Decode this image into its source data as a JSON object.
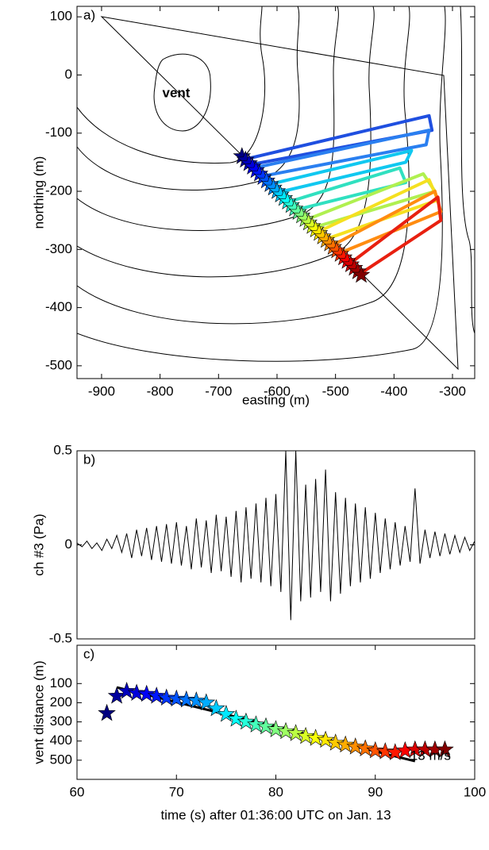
{
  "chart_data": [
    {
      "type": "scatter",
      "panel_label": "a)",
      "xlabel": "easting (m)",
      "ylabel": "northing (m)",
      "vent_label": "vent",
      "xlim": [
        -942,
        -262
      ],
      "ylim": [
        -522,
        118
      ],
      "xticks": [
        -900,
        -800,
        -700,
        -600,
        -500,
        -400,
        -300
      ],
      "yticks": [
        -500,
        -400,
        -300,
        -200,
        -100,
        0,
        100
      ],
      "colormap": "jet",
      "series": [
        {
          "marker": "star",
          "x": [
            -660,
            -654,
            -648,
            -642,
            -636,
            -630,
            -624,
            -618,
            -612,
            -606,
            -600,
            -594,
            -588,
            -582,
            -576,
            -570,
            -564,
            -558,
            -552,
            -546,
            -540,
            -534,
            -528,
            -522,
            -516,
            -510,
            -504,
            -498,
            -492,
            -486,
            -480,
            -474,
            -468,
            -462,
            -456
          ],
          "values": [
            -140,
            -146,
            -152,
            -158,
            -164,
            -170,
            -176,
            -182,
            -188,
            -194,
            -200,
            -206,
            -212,
            -218,
            -224,
            -230,
            -236,
            -242,
            -248,
            -254,
            -260,
            -266,
            -272,
            -278,
            -284,
            -290,
            -296,
            -302,
            -308,
            -314,
            -320,
            -326,
            -332,
            -338,
            -344
          ]
        }
      ],
      "loops": [
        {
          "color": "#1f4fe0",
          "x": [
            -655,
            -340,
            -335,
            -650
          ],
          "values": [
            -145,
            -70,
            -95,
            -155
          ]
        },
        {
          "color": "#2a7ff0",
          "x": [
            -640,
            -340,
            -345,
            -630
          ],
          "values": [
            -160,
            -95,
            -120,
            -175
          ]
        },
        {
          "color": "#10c8f0",
          "x": [
            -600,
            -370,
            -380,
            -590
          ],
          "values": [
            -185,
            -130,
            -150,
            -200
          ]
        },
        {
          "color": "#30e0c0",
          "x": [
            -570,
            -390,
            -380,
            -560
          ],
          "values": [
            -215,
            -160,
            -185,
            -230
          ]
        },
        {
          "color": "#b0f050",
          "x": [
            -540,
            -350,
            -330,
            -530
          ],
          "values": [
            -245,
            -170,
            -200,
            -260
          ]
        },
        {
          "color": "#f5e020",
          "x": [
            -520,
            -340,
            -325,
            -510
          ],
          "values": [
            -265,
            -180,
            -215,
            -280
          ]
        },
        {
          "color": "#ff8c10",
          "x": [
            -500,
            -330,
            -320,
            -490
          ],
          "values": [
            -290,
            -200,
            -235,
            -305
          ]
        },
        {
          "color": "#e82010",
          "x": [
            -470,
            -325,
            -320,
            -455
          ],
          "values": [
            -320,
            -210,
            -250,
            -340
          ]
        }
      ]
    },
    {
      "type": "line",
      "panel_label": "b)",
      "ylabel": "ch #3 (Pa)",
      "color": "#000000",
      "xlim": [
        60,
        100
      ],
      "ylim": [
        -0.5,
        0.5
      ],
      "yticks": [
        -0.5,
        0,
        0.5
      ],
      "x": [
        60,
        60.5,
        61,
        61.5,
        62,
        62.5,
        63,
        63.5,
        64,
        64.5,
        65,
        65.5,
        66,
        66.5,
        67,
        67.5,
        68,
        68.5,
        69,
        69.5,
        70,
        70.5,
        71,
        71.5,
        72,
        72.5,
        73,
        73.5,
        74,
        74.5,
        75,
        75.5,
        76,
        76.5,
        77,
        77.5,
        78,
        78.5,
        79,
        79.5,
        80,
        80.5,
        81,
        81.5,
        82,
        82.5,
        83,
        83.5,
        84,
        84.5,
        85,
        85.5,
        86,
        86.5,
        87,
        87.5,
        88,
        88.5,
        89,
        89.5,
        90,
        90.5,
        91,
        91.5,
        92,
        92.5,
        93,
        93.5,
        94,
        94.5,
        95,
        95.5,
        96,
        96.5,
        97,
        97.5,
        98,
        98.5,
        99,
        99.5,
        100
      ],
      "values": [
        0.01,
        -0.01,
        0.02,
        -0.02,
        0.01,
        -0.03,
        0.03,
        -0.02,
        0.05,
        -0.04,
        0.06,
        -0.07,
        0.08,
        -0.06,
        0.09,
        -0.08,
        0.1,
        -0.09,
        0.11,
        -0.1,
        0.12,
        -0.11,
        0.1,
        -0.13,
        0.14,
        -0.12,
        0.13,
        -0.15,
        0.16,
        -0.14,
        0.15,
        -0.17,
        0.18,
        -0.2,
        0.2,
        -0.18,
        0.22,
        -0.2,
        0.25,
        -0.22,
        0.27,
        -0.25,
        0.5,
        -0.4,
        0.5,
        -0.3,
        0.32,
        -0.28,
        0.35,
        -0.25,
        0.4,
        -0.3,
        0.28,
        -0.26,
        0.25,
        -0.22,
        0.22,
        -0.2,
        0.2,
        -0.18,
        0.17,
        -0.15,
        0.14,
        -0.13,
        0.12,
        -0.11,
        0.1,
        -0.09,
        0.3,
        -0.1,
        0.08,
        -0.07,
        0.07,
        -0.06,
        0.06,
        -0.05,
        0.05,
        -0.04,
        0.04,
        -0.03,
        0.02
      ]
    },
    {
      "type": "scatter",
      "panel_label": "c)",
      "xlabel": "time (s) after 01:36:00 UTC on Jan. 13",
      "ylabel": "vent distance (m)",
      "xlim": [
        60,
        100
      ],
      "ylim": [
        600,
        -100
      ],
      "xticks": [
        60,
        70,
        80,
        90,
        100
      ],
      "yticks": [
        100,
        200,
        300,
        400,
        500
      ],
      "colormap": "jet",
      "series": [
        {
          "marker": "star",
          "x": [
            63,
            64,
            65,
            66,
            67,
            68,
            69,
            70,
            71,
            72,
            73,
            74,
            75,
            76,
            77,
            78,
            79,
            80,
            81,
            82,
            83,
            84,
            85,
            86,
            87,
            88,
            89,
            90,
            91,
            92,
            93,
            94,
            95,
            96,
            97
          ],
          "values": [
            255,
            165,
            140,
            150,
            155,
            165,
            175,
            180,
            185,
            190,
            200,
            230,
            260,
            285,
            300,
            315,
            325,
            340,
            350,
            360,
            375,
            385,
            395,
            410,
            420,
            430,
            440,
            450,
            455,
            460,
            450,
            445,
            445,
            445,
            445
          ]
        }
      ],
      "fit": {
        "label": "13 m/s",
        "x": [
          64,
          94
        ],
        "values": [
          120,
          505
        ]
      }
    }
  ]
}
